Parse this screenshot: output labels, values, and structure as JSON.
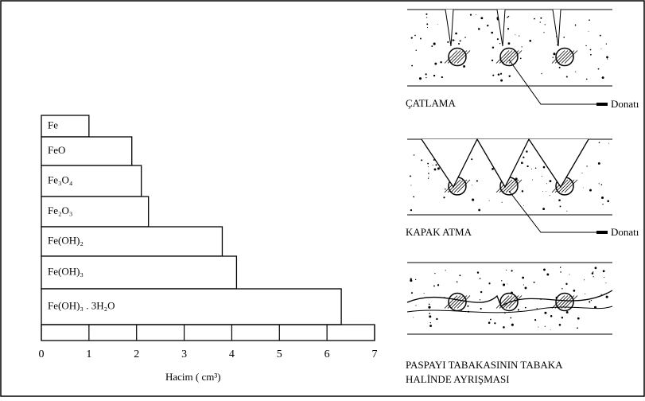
{
  "chart_data": {
    "type": "hbar",
    "categories": [
      "Fe",
      "FeO",
      "Fe₃O₄",
      "Fe₂O₃",
      "Fe(OH)₂",
      "Fe(OH)₃",
      "Fe(OH)₃ . 3H₂O"
    ],
    "values": [
      1.0,
      1.9,
      2.1,
      2.25,
      3.8,
      4.1,
      6.3
    ],
    "color": "#ffffff",
    "xlabel": "Hacim ( cm³)",
    "xlim": [
      0,
      7
    ],
    "xticks": [
      0,
      1,
      2,
      3,
      4,
      5,
      6,
      7
    ]
  },
  "diagrams": [
    {
      "label": "ÇATLAMA",
      "callout": "Donatı"
    },
    {
      "label": "KAPAK  ATMA",
      "callout": "Donatı"
    },
    {
      "label": "PASPAYI TABAKASININ TABAKA",
      "label2": "HALİNDE AYRIŞMASI"
    }
  ]
}
